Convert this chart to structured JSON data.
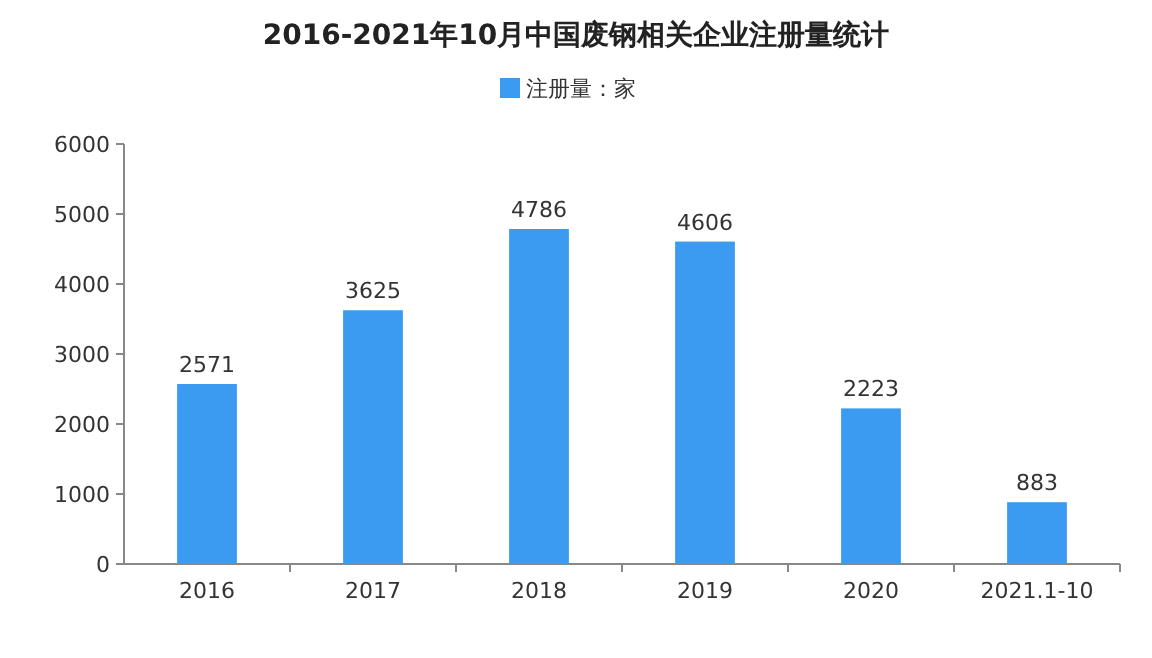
{
  "chart_data": {
    "type": "bar",
    "title": "2016-2021年10月中国废钢相关企业注册量统计",
    "categories": [
      "2016",
      "2017",
      "2018",
      "2019",
      "2020",
      "2021.1-10"
    ],
    "series": [
      {
        "name": "注册量：家",
        "color": "#3a9bf0",
        "values": [
          2571,
          3625,
          4786,
          4606,
          2223,
          883
        ]
      }
    ],
    "ylim": [
      0,
      6000
    ],
    "yticks": [
      0,
      1000,
      2000,
      3000,
      4000,
      5000,
      6000
    ],
    "data_labels": true,
    "legend": "top"
  }
}
